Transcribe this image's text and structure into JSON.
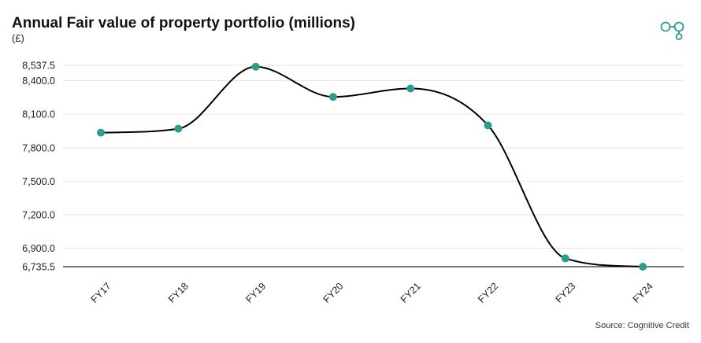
{
  "header": {
    "title": "Annual Fair value of property portfolio (millions)",
    "subtitle": "(£)"
  },
  "footer": {
    "source": "Source: Cognitive Credit"
  },
  "logo": {
    "icon": "linked-circles-icon",
    "color": "#2a9d8f"
  },
  "chart_data": {
    "type": "line",
    "title": "Annual Fair value of property portfolio (millions)",
    "ylabel": "(£)",
    "xlabel": "",
    "categories": [
      "FY17",
      "FY18",
      "FY19",
      "FY20",
      "FY21",
      "FY22",
      "FY23",
      "FY24"
    ],
    "series": [
      {
        "values": [
          7935,
          7970,
          8525,
          8255,
          8330,
          8000,
          6810,
          6735.5
        ]
      }
    ],
    "ylim": [
      6735.5,
      8537.5
    ],
    "yticks": [
      "8,537.5",
      "8,400.0",
      "8,100.0",
      "7,800.0",
      "7,500.0",
      "7,200.0",
      "6,900.0",
      "6,735.5"
    ],
    "ytick_values": [
      8537.5,
      8400,
      8100,
      7800,
      7500,
      7200,
      6900,
      6735.5
    ],
    "grid": true,
    "curve": "smooth",
    "line_color": "#000000",
    "marker_color": "#2a9d8f",
    "grid_color": "#e6e6e6",
    "axis_color": "#1a2b4a"
  }
}
